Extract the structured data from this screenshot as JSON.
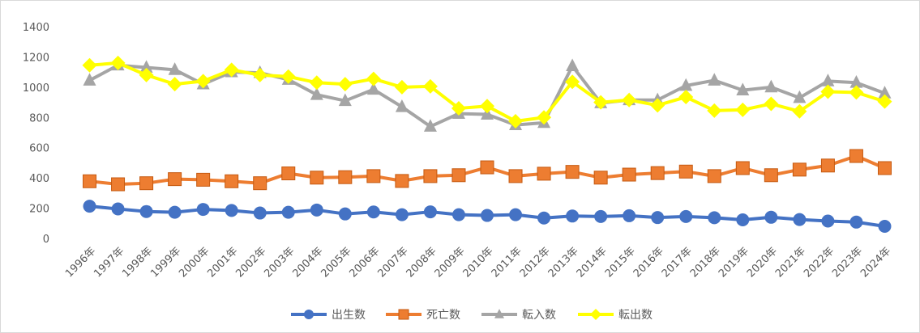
{
  "chart_data": {
    "type": "line",
    "title": "",
    "xlabel": "",
    "ylabel": "",
    "ylim": [
      0,
      1400
    ],
    "yticks": [
      0,
      200,
      400,
      600,
      800,
      1000,
      1200,
      1400
    ],
    "grid": false,
    "legend_position": "bottom",
    "categories": [
      "1996年",
      "1997年",
      "1998年",
      "1999年",
      "2000年",
      "2001年",
      "2002年",
      "2003年",
      "2004年",
      "2005年",
      "2006年",
      "2007年",
      "2008年",
      "2009年",
      "2010年",
      "2011年",
      "2012年",
      "2013年",
      "2014年",
      "2015年",
      "2016年",
      "2017年",
      "2018年",
      "2019年",
      "2020年",
      "2021年",
      "2022年",
      "2023年",
      "2024年"
    ],
    "series": [
      {
        "name": "出生数",
        "color": "#4472c4",
        "marker": "circle",
        "values": [
          213,
          195,
          178,
          173,
          192,
          185,
          168,
          173,
          188,
          162,
          175,
          157,
          176,
          157,
          152,
          157,
          135,
          148,
          145,
          150,
          138,
          145,
          137,
          123,
          140,
          125,
          115,
          108,
          80
        ]
      },
      {
        "name": "死亡数",
        "color": "#ed7d31",
        "marker": "square",
        "values": [
          378,
          358,
          365,
          392,
          388,
          378,
          365,
          430,
          402,
          405,
          412,
          380,
          412,
          418,
          470,
          412,
          428,
          440,
          402,
          422,
          432,
          442,
          412,
          465,
          418,
          455,
          482,
          545,
          465
        ]
      },
      {
        "name": "転入数",
        "color": "#a5a5a5",
        "marker": "triangle",
        "values": [
          1045,
          1145,
          1130,
          1115,
          1020,
          1100,
          1095,
          1050,
          950,
          910,
          985,
          870,
          740,
          825,
          820,
          750,
          765,
          1140,
          895,
          915,
          915,
          1010,
          1045,
          980,
          1000,
          930,
          1040,
          1030,
          960
        ]
      },
      {
        "name": "転出数",
        "color": "#ffff00",
        "marker": "diamond",
        "values": [
          1145,
          1160,
          1080,
          1020,
          1040,
          1115,
          1080,
          1070,
          1030,
          1020,
          1055,
          1000,
          1005,
          860,
          875,
          775,
          800,
          1035,
          900,
          915,
          880,
          935,
          845,
          850,
          890,
          840,
          970,
          965,
          905
        ]
      }
    ]
  }
}
